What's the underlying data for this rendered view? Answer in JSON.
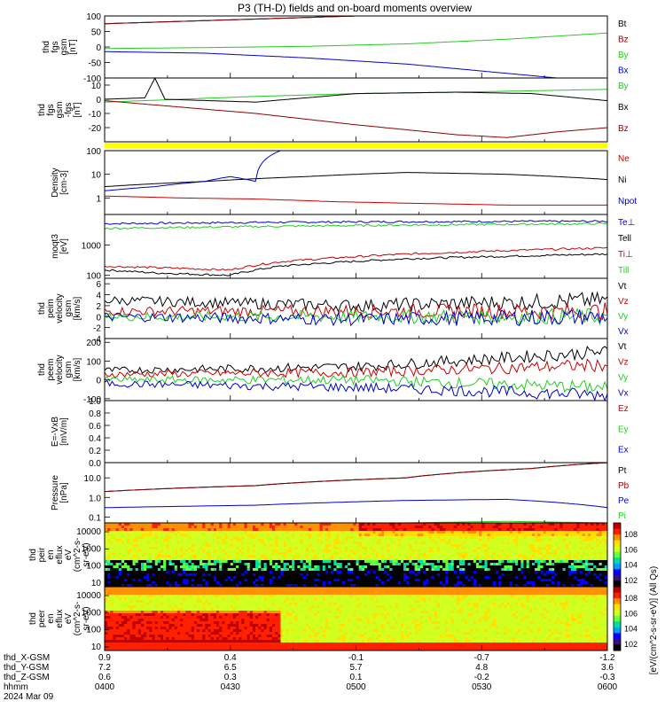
{
  "title": "P3 (TH-D) fields and on-board moments overview",
  "colors": {
    "black": "#000000",
    "red": "#cc0000",
    "green": "#22cc22",
    "blue": "#0000cc",
    "yellow": "#ffff00",
    "darkred": "#8b0000"
  },
  "chart_data": [
    {
      "type": "line",
      "ylabel": [
        "thd",
        "fgs",
        "gsm",
        "[nT]"
      ],
      "ylim": [
        -100,
        100
      ],
      "yticks": [
        -100,
        -50,
        0,
        50,
        100
      ],
      "legend": [
        "Bt",
        "Bz",
        "By",
        "Bx"
      ],
      "series": [
        {
          "name": "Bt",
          "color": "black",
          "x": [
            0,
            0.5
          ],
          "y": [
            75,
            100
          ]
        },
        {
          "name": "Bz",
          "color": "darkred",
          "x": [
            0,
            0.5
          ],
          "y": [
            75,
            100
          ]
        },
        {
          "name": "By",
          "color": "green",
          "x": [
            0,
            0.2,
            0.4,
            0.6,
            0.8,
            1.0
          ],
          "y": [
            -5,
            -2,
            2,
            10,
            25,
            45
          ]
        },
        {
          "name": "Bx",
          "color": "blue",
          "x": [
            0,
            0.2,
            0.4,
            0.6,
            0.8,
            0.9
          ],
          "y": [
            -15,
            -20,
            -35,
            -55,
            -85,
            -100
          ]
        }
      ]
    },
    {
      "type": "line",
      "ylabel": [
        "thd",
        "fgs",
        "gsm",
        "-fgs",
        "[nT]"
      ],
      "ylim": [
        -30,
        15
      ],
      "yticks": [
        -20,
        -10,
        0,
        10
      ],
      "legend": [
        "By",
        "Bx",
        "Bz"
      ],
      "series": [
        {
          "name": "By",
          "color": "green",
          "x": [
            0,
            0.15,
            0.3,
            0.5,
            0.7,
            0.85,
            1.0
          ],
          "y": [
            -2,
            0,
            2,
            4,
            5,
            6,
            7
          ]
        },
        {
          "name": "Bx",
          "color": "black",
          "x": [
            0,
            0.08,
            0.1,
            0.12,
            0.3,
            0.5,
            0.7,
            0.85,
            1.0
          ],
          "y": [
            0,
            1,
            15,
            0,
            -2,
            4,
            5,
            4,
            -1
          ]
        },
        {
          "name": "Bz",
          "color": "darkred",
          "x": [
            0,
            0.1,
            0.3,
            0.5,
            0.7,
            0.8,
            0.9,
            1.0
          ],
          "y": [
            -1,
            -4,
            -10,
            -18,
            -25,
            -27,
            -23,
            -20
          ]
        }
      ]
    },
    {
      "type": "line",
      "ylabel": [
        "Density",
        "[cm-3]"
      ],
      "yscale": "log",
      "ylim": [
        0.2,
        100
      ],
      "ytick_labels": [
        "100",
        "10",
        "1"
      ],
      "legend": [
        "Ne",
        "Ni",
        "Npot"
      ],
      "series": [
        {
          "name": "Ne",
          "color": "red",
          "x": [
            0,
            0.15,
            0.3,
            0.45,
            0.6,
            0.8,
            1.0
          ],
          "y": [
            1.2,
            1.0,
            0.9,
            0.7,
            0.6,
            0.5,
            0.5
          ]
        },
        {
          "name": "Ni",
          "color": "black",
          "x": [
            0,
            0.2,
            0.4,
            0.6,
            0.8,
            1.0
          ],
          "y": [
            3,
            5,
            8,
            12,
            10,
            6
          ]
        },
        {
          "name": "Npot",
          "color": "blue",
          "x": [
            0,
            0.1,
            0.2,
            0.25,
            0.3,
            0.35,
            0.45
          ],
          "y": [
            2,
            3,
            5,
            8,
            5,
            100,
            100
          ]
        }
      ]
    },
    {
      "type": "line",
      "ylabel": [
        "moqt3",
        "[eV]"
      ],
      "yscale": "log",
      "ylim": [
        80,
        10000
      ],
      "ytick_labels": [
        "1000",
        "100"
      ],
      "legend": [
        "Te⊥",
        "Tell",
        "Ti⊥",
        "Till"
      ],
      "series": [
        {
          "name": "Te⊥",
          "color": "blue",
          "x": [
            0,
            0.3,
            0.6,
            1.0
          ],
          "y": [
            5000,
            5500,
            5800,
            6000
          ]
        },
        {
          "name": "Tell",
          "color": "black",
          "x": [
            0,
            0.1,
            0.25,
            0.35,
            0.6,
            1.0
          ],
          "y": [
            150,
            120,
            100,
            200,
            350,
            500
          ]
        },
        {
          "name": "Ti⊥",
          "color": "red",
          "x": [
            0,
            0.1,
            0.25,
            0.35,
            0.6,
            1.0
          ],
          "y": [
            200,
            180,
            150,
            280,
            500,
            800
          ]
        },
        {
          "name": "Till",
          "color": "green",
          "x": [
            0,
            0.3,
            0.6,
            1.0
          ],
          "y": [
            3500,
            4000,
            4500,
            5000
          ]
        }
      ]
    },
    {
      "type": "line",
      "ylabel": [
        "thd",
        "peim",
        "velocity",
        "gsm",
        "[km/s]"
      ],
      "ylim": [
        -4,
        7
      ],
      "yticks": [
        -4,
        -2,
        0,
        2,
        4,
        6
      ],
      "legend": [
        "Vt",
        "Vz",
        "Vy",
        "Vx"
      ],
      "series": [
        {
          "name": "Vt",
          "color": "black",
          "x": [
            0,
            0.5,
            1.0
          ],
          "y": [
            3,
            2,
            3
          ]
        },
        {
          "name": "Vz",
          "color": "red",
          "x": [
            0,
            0.5,
            1.0
          ],
          "y": [
            1,
            1,
            1
          ]
        },
        {
          "name": "Vy",
          "color": "green",
          "x": [
            0,
            0.5,
            1.0
          ],
          "y": [
            0,
            0,
            0
          ]
        },
        {
          "name": "Vx",
          "color": "blue",
          "x": [
            0,
            0.5,
            1.0
          ],
          "y": [
            0,
            -0.5,
            0
          ]
        }
      ]
    },
    {
      "type": "line",
      "ylabel": [
        "thd",
        "peem",
        "velocity",
        "gsm",
        "[km/s]"
      ],
      "ylim": [
        -110,
        220
      ],
      "yticks": [
        -100,
        0,
        100,
        200
      ],
      "legend": [
        "Vt",
        "Vz",
        "Vy",
        "Vx"
      ],
      "series": [
        {
          "name": "Vt",
          "color": "black",
          "x": [
            0,
            0.5,
            1.0
          ],
          "y": [
            50,
            70,
            150
          ]
        },
        {
          "name": "Vz",
          "color": "red",
          "x": [
            0,
            0.5,
            1.0
          ],
          "y": [
            30,
            40,
            80
          ]
        },
        {
          "name": "Vy",
          "color": "green",
          "x": [
            0,
            0.5,
            1.0
          ],
          "y": [
            0,
            0,
            -40
          ]
        },
        {
          "name": "Vx",
          "color": "blue",
          "x": [
            0,
            0.5,
            1.0
          ],
          "y": [
            -20,
            -40,
            -80
          ]
        }
      ]
    },
    {
      "type": "line",
      "ylabel": [
        "E=-VxB",
        "[mV/m]"
      ],
      "ylim": [
        0,
        1
      ],
      "yticks": [
        0.0,
        0.2,
        0.4,
        0.6,
        0.8,
        1.0
      ],
      "ytick_labels": [
        "0.0",
        "0.2",
        "0.4",
        "0.6",
        "0.8",
        "1.0"
      ],
      "legend": [
        "Ez",
        "Ey",
        "Ex"
      ],
      "series": []
    },
    {
      "type": "line",
      "ylabel": [
        "Pressure",
        "[nPa]"
      ],
      "yscale": "log",
      "ylim": [
        0.05,
        60
      ],
      "ytick_labels": [
        "10.0",
        "1.0",
        "0.1"
      ],
      "legend": [
        "Pt",
        "Pb",
        "Pe",
        "Pi"
      ],
      "series": [
        {
          "name": "Pt",
          "color": "black",
          "x": [
            0,
            0.3,
            0.6,
            0.85,
            1.0
          ],
          "y": [
            2,
            4,
            10,
            30,
            60
          ]
        },
        {
          "name": "Pb",
          "color": "darkred",
          "x": [
            0,
            0.3,
            0.6,
            0.85,
            1.0
          ],
          "y": [
            2,
            4,
            10,
            30,
            60
          ]
        },
        {
          "name": "Pe",
          "color": "blue",
          "x": [
            0,
            0.3,
            0.6,
            0.8,
            1.0
          ],
          "y": [
            0.3,
            0.4,
            0.7,
            0.8,
            0.3
          ]
        },
        {
          "name": "Pi",
          "color": "green",
          "x": [
            0,
            0.3,
            0.6,
            0.8,
            1.0
          ],
          "y": [
            0.04,
            0.04,
            0.05,
            0.06,
            0.05
          ]
        }
      ]
    },
    {
      "type": "heatmap",
      "ylabel": [
        "thd",
        "peir",
        "en",
        "eflux",
        "eV",
        "(cm^2-s-",
        "sr-eV)"
      ],
      "yscale": "log",
      "ytick_labels": [
        "10000",
        "1000",
        "100",
        "10"
      ],
      "colorbar_ticks": [
        "10^8",
        "10^6",
        "10^4",
        "10^2"
      ]
    },
    {
      "type": "heatmap",
      "ylabel": [
        "thd",
        "peer",
        "en",
        "eflux",
        "eV",
        "(cm^2-s-",
        "sr-eV)"
      ],
      "yscale": "log",
      "ytick_labels": [
        "10000",
        "1000",
        "100",
        "10"
      ],
      "colorbar_ticks": [
        "10^8",
        "10^6",
        "10^4",
        "10^2"
      ]
    }
  ],
  "colorbar_label": "[eV/(cm^2-s-sr-eV)] (All Qs)",
  "xaxis": {
    "row_labels": [
      "thd_X-GSM",
      "thd_Y-GSM",
      "thd_Z-GSM",
      "hhmm",
      "2024 Mar 09"
    ],
    "columns": [
      [
        "0.9",
        "7.2",
        "0.6",
        "0400"
      ],
      [
        "0.4",
        "6.5",
        "0.3",
        "0430"
      ],
      [
        "-0.1",
        "5.7",
        "0.1",
        "0500"
      ],
      [
        "-0.7",
        "4.8",
        "-0.2",
        "0530"
      ],
      [
        "-1.2",
        "3.6",
        "-0.3",
        "0600"
      ]
    ]
  }
}
